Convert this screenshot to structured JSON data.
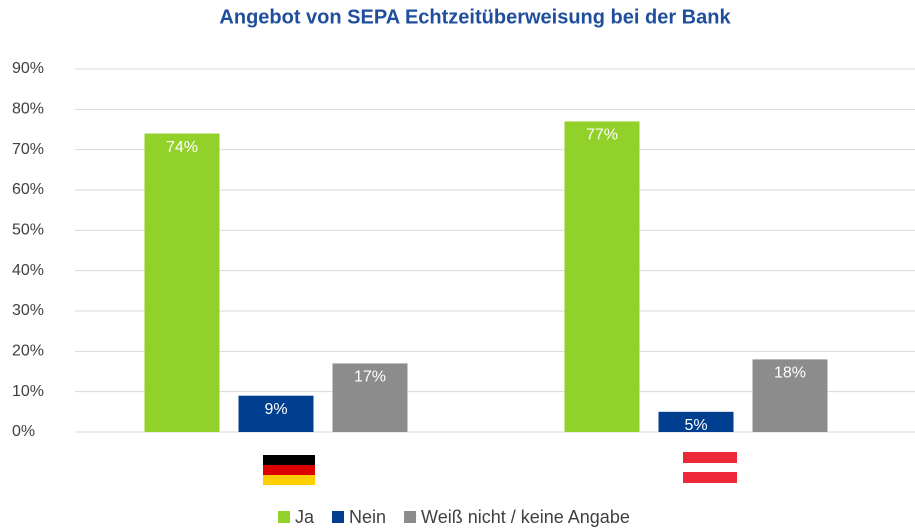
{
  "chart_data": {
    "type": "bar",
    "title": "Angebot von SEPA Echtzeitüberweisung bei der Bank",
    "categories": [
      null,
      null
    ],
    "series": [
      {
        "name": "Ja",
        "color": "#92d02a",
        "values": [
          74,
          77
        ],
        "value_labels": [
          "74%",
          "77%"
        ]
      },
      {
        "name": "Nein",
        "color": "#003e8f",
        "values": [
          9,
          5
        ],
        "value_labels": [
          "9%",
          "5%"
        ]
      },
      {
        "name": "Weiß nicht / keine Angabe",
        "color": "#8c8c8c",
        "values": [
          17,
          18
        ],
        "value_labels": [
          "17%",
          "18%"
        ]
      }
    ],
    "ylim": [
      0,
      90
    ],
    "yticks": [
      {
        "value": 0,
        "label": "0%"
      },
      {
        "value": 10,
        "label": "10%"
      },
      {
        "value": 20,
        "label": "20%"
      },
      {
        "value": 30,
        "label": "30%"
      },
      {
        "value": 40,
        "label": "40%"
      },
      {
        "value": 50,
        "label": "50%"
      },
      {
        "value": 60,
        "label": "60%"
      },
      {
        "value": 70,
        "label": "70%"
      },
      {
        "value": 80,
        "label": "80%"
      },
      {
        "value": 90,
        "label": "90%"
      }
    ],
    "grid": true,
    "legend": "bottom"
  }
}
